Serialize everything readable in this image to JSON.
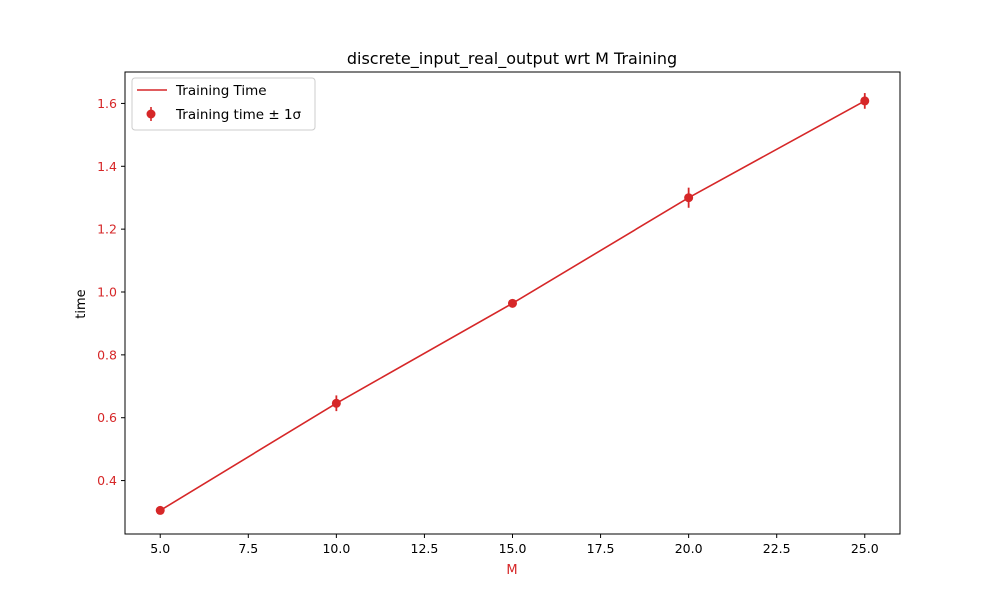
{
  "chart_data": {
    "type": "line",
    "title": "discrete_input_real_output wrt M Training",
    "xlabel": "M",
    "ylabel": "time",
    "xlim": [
      4.0,
      26.0
    ],
    "ylim": [
      0.23,
      1.7
    ],
    "xticks": [
      "5.0",
      "7.5",
      "10.0",
      "12.5",
      "15.0",
      "17.5",
      "20.0",
      "22.5",
      "25.0"
    ],
    "yticks": [
      "0.4",
      "0.6",
      "0.8",
      "1.0",
      "1.2",
      "1.4",
      "1.6"
    ],
    "grid": false,
    "legend_position": "top-left",
    "colors": {
      "series": "#d62728",
      "xlabel": "#d62728",
      "xtick_labels": "#000000",
      "ytick_labels": "#d62728",
      "axes": "#000000"
    },
    "series": [
      {
        "name": "Training Time",
        "kind": "line",
        "x": [
          5,
          10,
          15,
          20,
          25
        ],
        "y": [
          0.305,
          0.646,
          0.964,
          1.3,
          1.608
        ]
      },
      {
        "name": "Training time ± 1σ",
        "kind": "errorbar",
        "x": [
          5,
          10,
          15,
          20,
          25
        ],
        "y": [
          0.305,
          0.646,
          0.964,
          1.3,
          1.608
        ],
        "yerr": [
          0.01,
          0.025,
          0.013,
          0.032,
          0.025
        ]
      }
    ]
  }
}
